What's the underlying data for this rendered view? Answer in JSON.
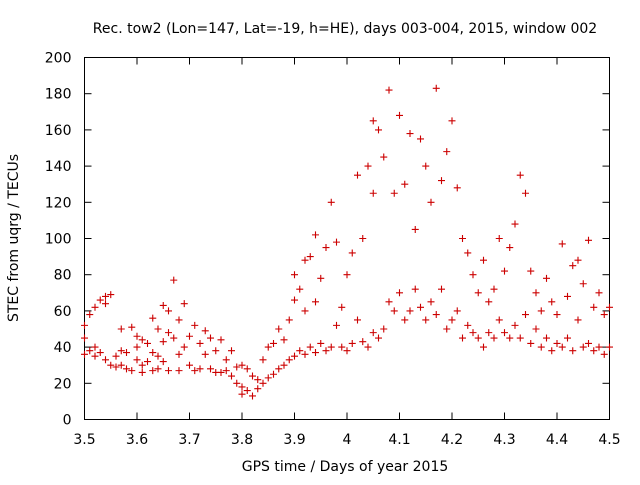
{
  "chart_data": {
    "type": "scatter",
    "title": "Rec. tow2 (Lon=147, Lat=-19, h=HE), days 003-004, 2015, window 002",
    "xlabel": "GPS time / Days of year 2015",
    "ylabel": "STEC from uqrg / TECUs",
    "xlim": [
      3.5,
      4.5
    ],
    "ylim": [
      0,
      200
    ],
    "xticks": [
      3.5,
      3.6,
      3.7,
      3.8,
      3.9,
      4.0,
      4.1,
      4.2,
      4.3,
      4.4,
      4.5
    ],
    "xtick_labels": [
      "3.5",
      "3.6",
      "3.7",
      "3.8",
      "3.9",
      "4",
      "4.1",
      "4.2",
      "4.3",
      "4.4",
      "4.5"
    ],
    "yticks": [
      0,
      20,
      40,
      60,
      80,
      100,
      120,
      140,
      160,
      180,
      200
    ],
    "ytick_labels": [
      "0",
      "20",
      "40",
      "60",
      "80",
      "100",
      "120",
      "140",
      "160",
      "180",
      "200"
    ],
    "marker": "+",
    "color": "#cc0000",
    "grid": false,
    "series": [
      {
        "name": "STEC",
        "points": [
          [
            3.5,
            36
          ],
          [
            3.5,
            45
          ],
          [
            3.5,
            52
          ],
          [
            3.51,
            38
          ],
          [
            3.51,
            58
          ],
          [
            3.52,
            35
          ],
          [
            3.52,
            40
          ],
          [
            3.52,
            62
          ],
          [
            3.53,
            66
          ],
          [
            3.53,
            37
          ],
          [
            3.54,
            33
          ],
          [
            3.54,
            64
          ],
          [
            3.54,
            68
          ],
          [
            3.55,
            30
          ],
          [
            3.55,
            69
          ],
          [
            3.56,
            35
          ],
          [
            3.56,
            29
          ],
          [
            3.57,
            30
          ],
          [
            3.57,
            38
          ],
          [
            3.57,
            50
          ],
          [
            3.58,
            28
          ],
          [
            3.58,
            37
          ],
          [
            3.59,
            51
          ],
          [
            3.59,
            27
          ],
          [
            3.6,
            40
          ],
          [
            3.6,
            33
          ],
          [
            3.6,
            46
          ],
          [
            3.61,
            26
          ],
          [
            3.61,
            44
          ],
          [
            3.61,
            30
          ],
          [
            3.62,
            42
          ],
          [
            3.62,
            32
          ],
          [
            3.63,
            27
          ],
          [
            3.63,
            56
          ],
          [
            3.63,
            37
          ],
          [
            3.64,
            50
          ],
          [
            3.64,
            28
          ],
          [
            3.64,
            35
          ],
          [
            3.65,
            63
          ],
          [
            3.65,
            32
          ],
          [
            3.65,
            43
          ],
          [
            3.66,
            27
          ],
          [
            3.66,
            60
          ],
          [
            3.66,
            48
          ],
          [
            3.67,
            77
          ],
          [
            3.67,
            45
          ],
          [
            3.68,
            27
          ],
          [
            3.68,
            36
          ],
          [
            3.68,
            55
          ],
          [
            3.69,
            64
          ],
          [
            3.69,
            40
          ],
          [
            3.7,
            30
          ],
          [
            3.7,
            46
          ],
          [
            3.71,
            27
          ],
          [
            3.71,
            52
          ],
          [
            3.72,
            42
          ],
          [
            3.72,
            28
          ],
          [
            3.73,
            36
          ],
          [
            3.73,
            49
          ],
          [
            3.74,
            28
          ],
          [
            3.74,
            45
          ],
          [
            3.75,
            26
          ],
          [
            3.75,
            38
          ],
          [
            3.76,
            26
          ],
          [
            3.76,
            44
          ],
          [
            3.77,
            27
          ],
          [
            3.77,
            33
          ],
          [
            3.78,
            24
          ],
          [
            3.78,
            38
          ],
          [
            3.79,
            20
          ],
          [
            3.79,
            29
          ],
          [
            3.8,
            18
          ],
          [
            3.8,
            30
          ],
          [
            3.8,
            14
          ],
          [
            3.81,
            16
          ],
          [
            3.81,
            28
          ],
          [
            3.82,
            13
          ],
          [
            3.82,
            24
          ],
          [
            3.83,
            17
          ],
          [
            3.83,
            22
          ],
          [
            3.84,
            20
          ],
          [
            3.84,
            33
          ],
          [
            3.85,
            23
          ],
          [
            3.85,
            40
          ],
          [
            3.86,
            25
          ],
          [
            3.86,
            42
          ],
          [
            3.87,
            28
          ],
          [
            3.87,
            50
          ],
          [
            3.88,
            30
          ],
          [
            3.88,
            44
          ],
          [
            3.89,
            33
          ],
          [
            3.89,
            55
          ],
          [
            3.9,
            35
          ],
          [
            3.9,
            66
          ],
          [
            3.9,
            80
          ],
          [
            3.91,
            38
          ],
          [
            3.91,
            72
          ],
          [
            3.92,
            36
          ],
          [
            3.92,
            60
          ],
          [
            3.92,
            88
          ],
          [
            3.93,
            40
          ],
          [
            3.93,
            90
          ],
          [
            3.94,
            37
          ],
          [
            3.94,
            102
          ],
          [
            3.94,
            65
          ],
          [
            3.95,
            42
          ],
          [
            3.95,
            78
          ],
          [
            3.96,
            38
          ],
          [
            3.96,
            95
          ],
          [
            3.97,
            40
          ],
          [
            3.97,
            120
          ],
          [
            3.98,
            52
          ],
          [
            3.98,
            98
          ],
          [
            3.99,
            40
          ],
          [
            3.99,
            62
          ],
          [
            4.0,
            38
          ],
          [
            4.0,
            80
          ],
          [
            4.01,
            42
          ],
          [
            4.01,
            92
          ],
          [
            4.02,
            55
          ],
          [
            4.02,
            135
          ],
          [
            4.03,
            43
          ],
          [
            4.03,
            100
          ],
          [
            4.04,
            40
          ],
          [
            4.04,
            140
          ],
          [
            4.05,
            48
          ],
          [
            4.05,
            125
          ],
          [
            4.05,
            165
          ],
          [
            4.06,
            45
          ],
          [
            4.06,
            160
          ],
          [
            4.07,
            50
          ],
          [
            4.07,
            145
          ],
          [
            4.08,
            65
          ],
          [
            4.08,
            182
          ],
          [
            4.09,
            60
          ],
          [
            4.09,
            125
          ],
          [
            4.1,
            70
          ],
          [
            4.1,
            168
          ],
          [
            4.11,
            55
          ],
          [
            4.11,
            130
          ],
          [
            4.12,
            60
          ],
          [
            4.12,
            158
          ],
          [
            4.13,
            72
          ],
          [
            4.13,
            105
          ],
          [
            4.14,
            62
          ],
          [
            4.14,
            155
          ],
          [
            4.15,
            55
          ],
          [
            4.15,
            140
          ],
          [
            4.16,
            65
          ],
          [
            4.16,
            120
          ],
          [
            4.17,
            58
          ],
          [
            4.17,
            183
          ],
          [
            4.18,
            72
          ],
          [
            4.18,
            132
          ],
          [
            4.19,
            50
          ],
          [
            4.19,
            148
          ],
          [
            4.2,
            55
          ],
          [
            4.2,
            165
          ],
          [
            4.21,
            60
          ],
          [
            4.21,
            128
          ],
          [
            4.22,
            45
          ],
          [
            4.22,
            100
          ],
          [
            4.23,
            52
          ],
          [
            4.23,
            92
          ],
          [
            4.24,
            48
          ],
          [
            4.24,
            80
          ],
          [
            4.25,
            45
          ],
          [
            4.25,
            70
          ],
          [
            4.26,
            40
          ],
          [
            4.26,
            88
          ],
          [
            4.27,
            48
          ],
          [
            4.27,
            65
          ],
          [
            4.28,
            45
          ],
          [
            4.28,
            72
          ],
          [
            4.29,
            55
          ],
          [
            4.29,
            100
          ],
          [
            4.3,
            48
          ],
          [
            4.3,
            82
          ],
          [
            4.31,
            45
          ],
          [
            4.31,
            95
          ],
          [
            4.32,
            52
          ],
          [
            4.32,
            108
          ],
          [
            4.33,
            45
          ],
          [
            4.33,
            135
          ],
          [
            4.34,
            58
          ],
          [
            4.34,
            125
          ],
          [
            4.35,
            42
          ],
          [
            4.35,
            82
          ],
          [
            4.36,
            50
          ],
          [
            4.36,
            70
          ],
          [
            4.37,
            40
          ],
          [
            4.37,
            60
          ],
          [
            4.38,
            45
          ],
          [
            4.38,
            78
          ],
          [
            4.39,
            38
          ],
          [
            4.39,
            65
          ],
          [
            4.4,
            42
          ],
          [
            4.4,
            58
          ],
          [
            4.41,
            40
          ],
          [
            4.41,
            97
          ],
          [
            4.42,
            45
          ],
          [
            4.42,
            68
          ],
          [
            4.43,
            38
          ],
          [
            4.43,
            85
          ],
          [
            4.44,
            55
          ],
          [
            4.44,
            88
          ],
          [
            4.45,
            40
          ],
          [
            4.45,
            75
          ],
          [
            4.46,
            42
          ],
          [
            4.46,
            99
          ],
          [
            4.47,
            38
          ],
          [
            4.47,
            62
          ],
          [
            4.48,
            40
          ],
          [
            4.48,
            70
          ],
          [
            4.49,
            36
          ],
          [
            4.49,
            58
          ],
          [
            4.5,
            40
          ],
          [
            4.5,
            62
          ]
        ]
      }
    ]
  }
}
